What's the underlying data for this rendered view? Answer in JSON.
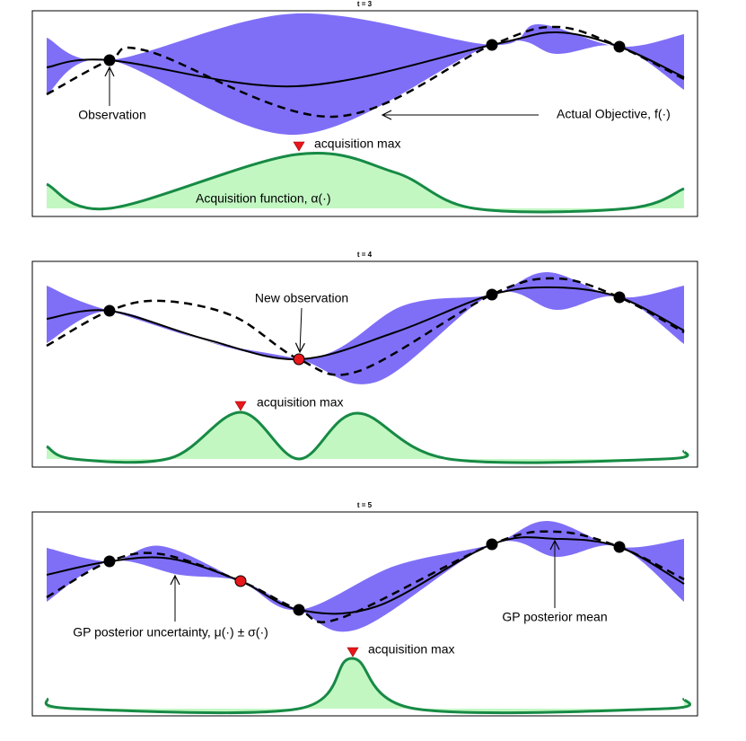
{
  "panels": [
    {
      "title": "t = 3",
      "labels": [
        "Observation",
        "Actual Objective, f(·)",
        "acquisition max",
        "Acquisition function, α(·)"
      ]
    },
    {
      "title": "t = 4",
      "labels": [
        "New observation",
        "acquisition max"
      ]
    },
    {
      "title": "t = 5",
      "labels": [
        "GP posterior uncertainty, μ(·) ± σ(·)",
        "GP posterior mean",
        "acquisition max"
      ]
    }
  ]
}
